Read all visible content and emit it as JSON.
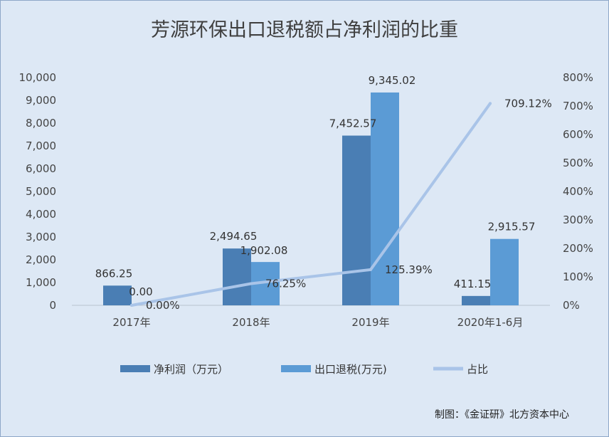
{
  "chart_data": {
    "type": "bar",
    "title": "芳源环保出口退税额占净利润的比重",
    "categories": [
      "2017年",
      "2018年",
      "2019年",
      "2020年1-6月"
    ],
    "series": [
      {
        "name": "净利润（万元）",
        "type": "bar",
        "axis": "left",
        "color": "#4a7eb4",
        "values": [
          866.25,
          2494.65,
          7452.57,
          411.15
        ],
        "labels": [
          "866.25",
          "2,494.65",
          "7,452.57",
          "411.15"
        ]
      },
      {
        "name": "出口退税(万元)",
        "type": "bar",
        "axis": "left",
        "color": "#5b9bd5",
        "values": [
          0.0,
          1902.08,
          9345.02,
          2915.57
        ],
        "labels": [
          "0.00",
          "1,902.08",
          "9,345.02",
          "2,915.57"
        ]
      },
      {
        "name": "占比",
        "type": "line",
        "axis": "right",
        "color": "#a9c4e8",
        "values": [
          0.0,
          76.25,
          125.39,
          709.12
        ],
        "labels": [
          "0.00%",
          "76.25%",
          "125.39%",
          "709.12%"
        ]
      }
    ],
    "y_left": {
      "min": 0,
      "max": 10000,
      "ticks": [
        "0",
        "1,000",
        "2,000",
        "3,000",
        "4,000",
        "5,000",
        "6,000",
        "7,000",
        "8,000",
        "9,000",
        "10,000"
      ]
    },
    "y_right": {
      "min": 0,
      "max": 800,
      "ticks": [
        "0%",
        "100%",
        "200%",
        "300%",
        "400%",
        "500%",
        "600%",
        "700%",
        "800%"
      ]
    },
    "grid": false,
    "legend": "bottom",
    "source": "制图：《金证研》北方资本中心"
  }
}
